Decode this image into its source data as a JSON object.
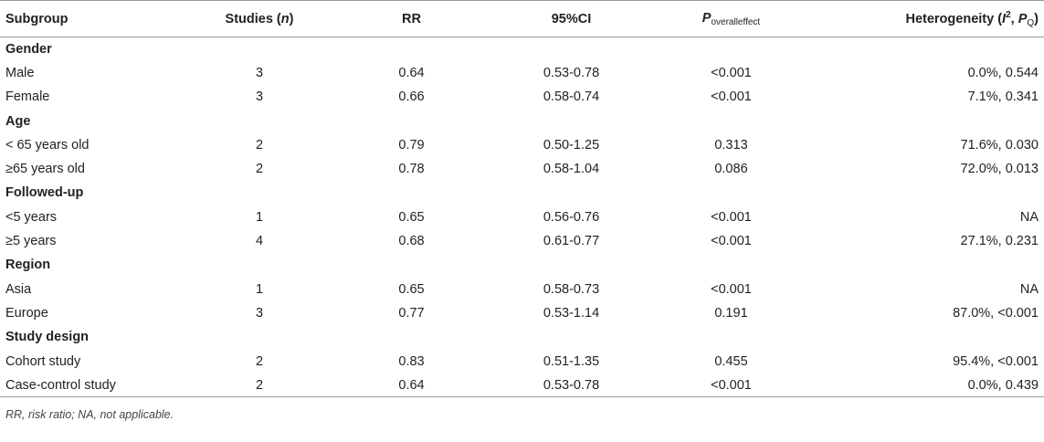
{
  "table": {
    "headers": {
      "subgroup": "Subgroup",
      "studies": "Studies (",
      "studies_n": "n",
      "studies_close": ")",
      "rr": "RR",
      "ci": "95%CI",
      "p_main": "P",
      "p_sub": "overalleffect",
      "het_prefix": "Heterogeneity (",
      "het_i": "I",
      "het_i_sup": "2",
      "het_sep": ", ",
      "het_p": "P",
      "het_p_sub": "Q",
      "het_close": ")"
    },
    "rows": [
      {
        "type": "group",
        "label": "Gender"
      },
      {
        "type": "data",
        "label": "Male",
        "studies": "3",
        "rr": "0.64",
        "ci": "0.53-0.78",
        "p": "<0.001",
        "het": "0.0%, 0.544"
      },
      {
        "type": "data",
        "label": "Female",
        "studies": "3",
        "rr": "0.66",
        "ci": "0.58-0.74",
        "p": "<0.001",
        "het": "7.1%, 0.341"
      },
      {
        "type": "group",
        "label": "Age"
      },
      {
        "type": "data",
        "label": "< 65 years old",
        "studies": "2",
        "rr": "0.79",
        "ci": "0.50-1.25",
        "p": "0.313",
        "het": "71.6%, 0.030"
      },
      {
        "type": "data",
        "label": "≥65 years old",
        "studies": "2",
        "rr": "0.78",
        "ci": "0.58-1.04",
        "p": "0.086",
        "het": "72.0%, 0.013"
      },
      {
        "type": "group",
        "label": "Followed-up"
      },
      {
        "type": "data",
        "label": "<5 years",
        "studies": "1",
        "rr": "0.65",
        "ci": "0.56-0.76",
        "p": "<0.001",
        "het": "NA"
      },
      {
        "type": "data",
        "label": "≥5 years",
        "studies": "4",
        "rr": "0.68",
        "ci": "0.61-0.77",
        "p": "<0.001",
        "het": "27.1%, 0.231"
      },
      {
        "type": "group",
        "label": "Region"
      },
      {
        "type": "data",
        "label": "Asia",
        "studies": "1",
        "rr": "0.65",
        "ci": "0.58-0.73",
        "p": "<0.001",
        "het": "NA"
      },
      {
        "type": "data",
        "label": "Europe",
        "studies": "3",
        "rr": "0.77",
        "ci": "0.53-1.14",
        "p": "0.191",
        "het": "87.0%, <0.001"
      },
      {
        "type": "group",
        "label": "Study design"
      },
      {
        "type": "data",
        "label": "Cohort study",
        "studies": "2",
        "rr": "0.83",
        "ci": "0.51-1.35",
        "p": "0.455",
        "het": "95.4%, <0.001"
      },
      {
        "type": "data",
        "label": "Case-control study",
        "studies": "2",
        "rr": "0.64",
        "ci": "0.53-0.78",
        "p": "<0.001",
        "het": "0.0%, 0.439"
      }
    ],
    "footnote": "RR, risk ratio; NA, not applicable."
  }
}
